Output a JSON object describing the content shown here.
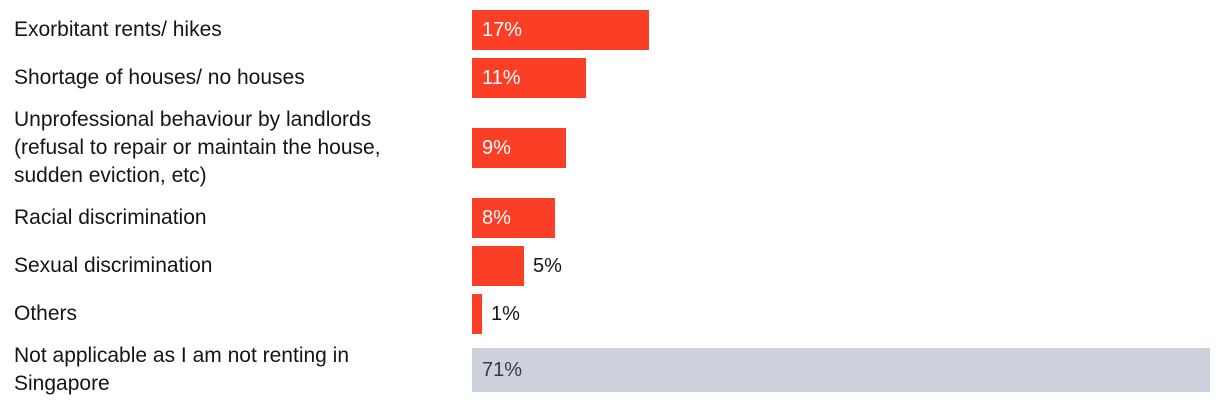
{
  "chart_data": {
    "type": "bar",
    "orientation": "horizontal",
    "title": "",
    "xlabel": "",
    "ylabel": "",
    "unit": "%",
    "xlim": [
      0,
      71
    ],
    "grid": false,
    "legend": "none",
    "categories": [
      "Exorbitant rents/ hikes",
      "Shortage of houses/ no houses",
      "Unprofessional behaviour by landlords (refusal to repair or maintain the house, sudden eviction, etc)",
      "Racial discrimination",
      "Sexual discrimination",
      "Others",
      "Not applicable as I am not renting in Singapore"
    ],
    "values": [
      17,
      11,
      9,
      8,
      5,
      1,
      71
    ],
    "value_labels": [
      "17%",
      "11%",
      "9%",
      "8%",
      "5%",
      "1%",
      "71%"
    ],
    "items": [
      {
        "label": "Exorbitant rents/ hikes",
        "value": 17,
        "value_label": "17%",
        "bar_color": "#fb3e26",
        "value_color": "#ffffff",
        "value_inside": true
      },
      {
        "label": "Shortage of houses/ no houses",
        "value": 11,
        "value_label": "11%",
        "bar_color": "#fb3e26",
        "value_color": "#ffffff",
        "value_inside": true
      },
      {
        "label": "Unprofessional behaviour by landlords (refusal to repair or maintain the house, sudden eviction, etc)",
        "value": 9,
        "value_label": "9%",
        "bar_color": "#fb3e26",
        "value_color": "#ffffff",
        "value_inside": true
      },
      {
        "label": "Racial discrimination",
        "value": 8,
        "value_label": "8%",
        "bar_color": "#fb3e26",
        "value_color": "#ffffff",
        "value_inside": true
      },
      {
        "label": "Sexual discrimination",
        "value": 5,
        "value_label": "5%",
        "bar_color": "#fb3e26",
        "value_color": "#151515",
        "value_inside": false
      },
      {
        "label": "Others",
        "value": 1,
        "value_label": "1%",
        "bar_color": "#fb3e26",
        "value_color": "#151515",
        "value_inside": false
      },
      {
        "label": "Not applicable as I am not renting in Singapore",
        "value": 71,
        "value_label": "71%",
        "bar_color": "#cdd1db",
        "value_color": "#363b44",
        "value_inside": true
      }
    ],
    "colors": {
      "bar_red": "#fb3e26",
      "bar_gray": "#cdd1db",
      "category_text": "#151515",
      "value_text_on_red": "#ffffff",
      "value_text_on_gray": "#363b44",
      "value_text_outside": "#151515",
      "background": "#ffffff"
    }
  }
}
